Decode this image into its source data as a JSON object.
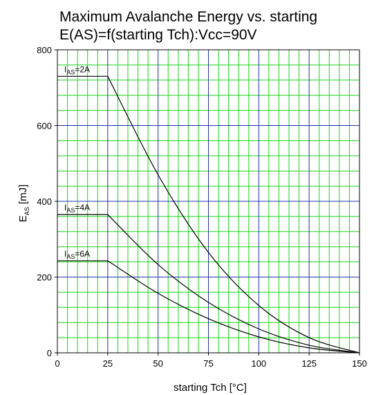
{
  "chart_data": {
    "type": "line",
    "title": "Maximum Avalanche Energy vs. starting",
    "subtitle": "E(AS)=f(starting Tch):Vcc=90V",
    "xlabel": "starting Tch [°C]",
    "ylabel_main": "E",
    "ylabel_sub": "AS",
    "ylabel_unit": " [mJ]",
    "xlim": [
      0,
      150
    ],
    "ylim": [
      0,
      800
    ],
    "x_ticks": [
      0,
      25,
      50,
      75,
      100,
      125,
      150
    ],
    "y_ticks": [
      0,
      200,
      400,
      600,
      800
    ],
    "grid": true,
    "colors": {
      "major_grid": "#1f2fb0",
      "minor_grid": "#19d419",
      "line": "#000000"
    },
    "series": [
      {
        "name": "IAS=2A",
        "label_main": "I",
        "label_sub": "AS",
        "label_value": "=2A",
        "x": [
          0,
          25,
          50,
          75,
          100,
          125,
          150
        ],
        "y": [
          730,
          730,
          470,
          265,
          125,
          40,
          0
        ]
      },
      {
        "name": "IAS=4A",
        "label_main": "I",
        "label_sub": "AS",
        "label_value": "=4A",
        "x": [
          0,
          25,
          50,
          75,
          100,
          125,
          150
        ],
        "y": [
          365,
          365,
          233,
          133,
          63,
          20,
          0
        ]
      },
      {
        "name": "IAS=6A",
        "label_main": "I",
        "label_sub": "AS",
        "label_value": "=6A",
        "x": [
          0,
          25,
          50,
          75,
          100,
          125,
          150
        ],
        "y": [
          243,
          243,
          157,
          90,
          42,
          13,
          0
        ]
      }
    ]
  }
}
